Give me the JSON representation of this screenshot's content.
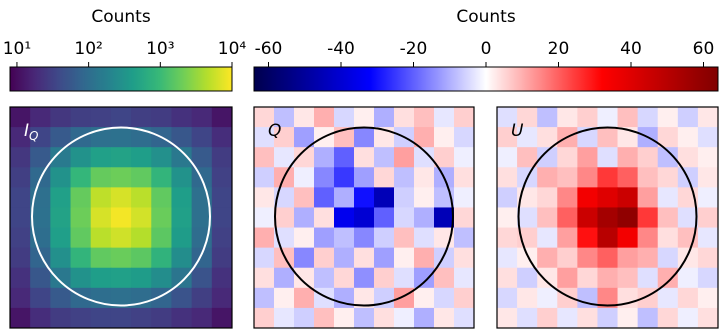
{
  "chart_data": [
    {
      "type": "heatmap",
      "title": "Counts",
      "colormap": "viridis",
      "log": true,
      "zlim": [
        8,
        10000
      ],
      "zticks": [
        {
          "value": 10,
          "label": "10¹"
        },
        {
          "value": 100,
          "label": "10²"
        },
        {
          "value": 1000,
          "label": "10³"
        },
        {
          "value": 10000,
          "label": "10⁴"
        }
      ],
      "panels": [
        {
          "label": "I",
          "label_subscript": "Q",
          "z": [
            [
              12,
              18,
              25,
              30,
              32,
              35,
              30,
              28,
              22,
              18,
              12
            ],
            [
              18,
              35,
              60,
              90,
              110,
              115,
              100,
              80,
              55,
              35,
              20
            ],
            [
              25,
              60,
              150,
              300,
              450,
              480,
              420,
              280,
              140,
              60,
              28
            ],
            [
              30,
              90,
              300,
              900,
              1800,
              2000,
              1700,
              850,
              300,
              90,
              32
            ],
            [
              35,
              110,
              450,
              1800,
              5000,
              6500,
              4800,
              1700,
              420,
              110,
              35
            ],
            [
              35,
              115,
              480,
              2000,
              6500,
              9000,
              6200,
              1900,
              450,
              110,
              35
            ],
            [
              32,
              105,
              430,
              1700,
              4800,
              6000,
              4500,
              1600,
              400,
              100,
              32
            ],
            [
              28,
              80,
              280,
              850,
              1700,
              1900,
              1600,
              800,
              260,
              80,
              28
            ],
            [
              22,
              55,
              140,
              300,
              420,
              450,
              400,
              260,
              130,
              50,
              22
            ],
            [
              18,
              35,
              60,
              90,
              105,
              110,
              100,
              80,
              50,
              30,
              18
            ],
            [
              12,
              20,
              28,
              32,
              35,
              35,
              32,
              28,
              22,
              18,
              12
            ]
          ]
        }
      ]
    },
    {
      "type": "heatmap",
      "title": "Counts",
      "colormap": "seismic",
      "log": false,
      "zlim": [
        -64,
        64
      ],
      "zticks": [
        -60,
        -40,
        -20,
        0,
        20,
        40,
        60
      ],
      "panels": [
        {
          "label": "Q",
          "z": [
            [
              5,
              -8,
              3,
              10,
              -5,
              2,
              -10,
              4,
              8,
              -3,
              6
            ],
            [
              -4,
              6,
              -12,
              2,
              8,
              -15,
              3,
              -6,
              10,
              2,
              -5
            ],
            [
              8,
              -3,
              5,
              -10,
              -20,
              4,
              -8,
              12,
              -4,
              6,
              -2
            ],
            [
              -6,
              10,
              -2,
              -15,
              -25,
              -12,
              5,
              -8,
              3,
              -10,
              4
            ],
            [
              3,
              -5,
              8,
              -20,
              -10,
              -30,
              -45,
              -6,
              2,
              -8,
              -2
            ],
            [
              -2,
              6,
              -10,
              4,
              -35,
              -40,
              -20,
              -5,
              -10,
              -45,
              5
            ],
            [
              10,
              -4,
              2,
              -12,
              -8,
              -15,
              -6,
              8,
              -4,
              3,
              -8
            ],
            [
              -5,
              8,
              -15,
              6,
              -10,
              4,
              -12,
              2,
              10,
              -6,
              4
            ],
            [
              4,
              -10,
              3,
              -8,
              5,
              -14,
              6,
              -4,
              -12,
              8,
              -3
            ],
            [
              -8,
              2,
              10,
              -4,
              -10,
              3,
              -6,
              12,
              2,
              -5,
              6
            ],
            [
              6,
              -3,
              -6,
              8,
              2,
              -8,
              4,
              -2,
              -10,
              3,
              -4
            ]
          ]
        },
        {
          "label": "U",
          "z": [
            [
              -4,
              5,
              -8,
              3,
              6,
              -2,
              8,
              -5,
              2,
              -6,
              3
            ],
            [
              6,
              -3,
              4,
              10,
              -5,
              8,
              3,
              -10,
              5,
              2,
              -4
            ],
            [
              -2,
              8,
              -6,
              5,
              12,
              -4,
              10,
              6,
              -8,
              4,
              2
            ],
            [
              4,
              -5,
              10,
              8,
              15,
              25,
              20,
              8,
              5,
              -6,
              3
            ],
            [
              -6,
              3,
              5,
              15,
              35,
              40,
              45,
              12,
              -3,
              5,
              -2
            ],
            [
              2,
              -4,
              8,
              20,
              45,
              55,
              60,
              25,
              8,
              -4,
              6
            ],
            [
              5,
              6,
              -3,
              12,
              30,
              50,
              35,
              15,
              4,
              8,
              -3
            ],
            [
              -3,
              2,
              10,
              6,
              15,
              20,
              12,
              10,
              -5,
              3,
              5
            ],
            [
              4,
              -6,
              3,
              12,
              5,
              10,
              8,
              -4,
              10,
              -2,
              -5
            ],
            [
              -5,
              3,
              -2,
              6,
              -8,
              15,
              4,
              6,
              -3,
              5,
              2
            ],
            [
              3,
              -4,
              6,
              -3,
              4,
              -6,
              2,
              -8,
              5,
              -2,
              4
            ]
          ]
        }
      ]
    }
  ]
}
